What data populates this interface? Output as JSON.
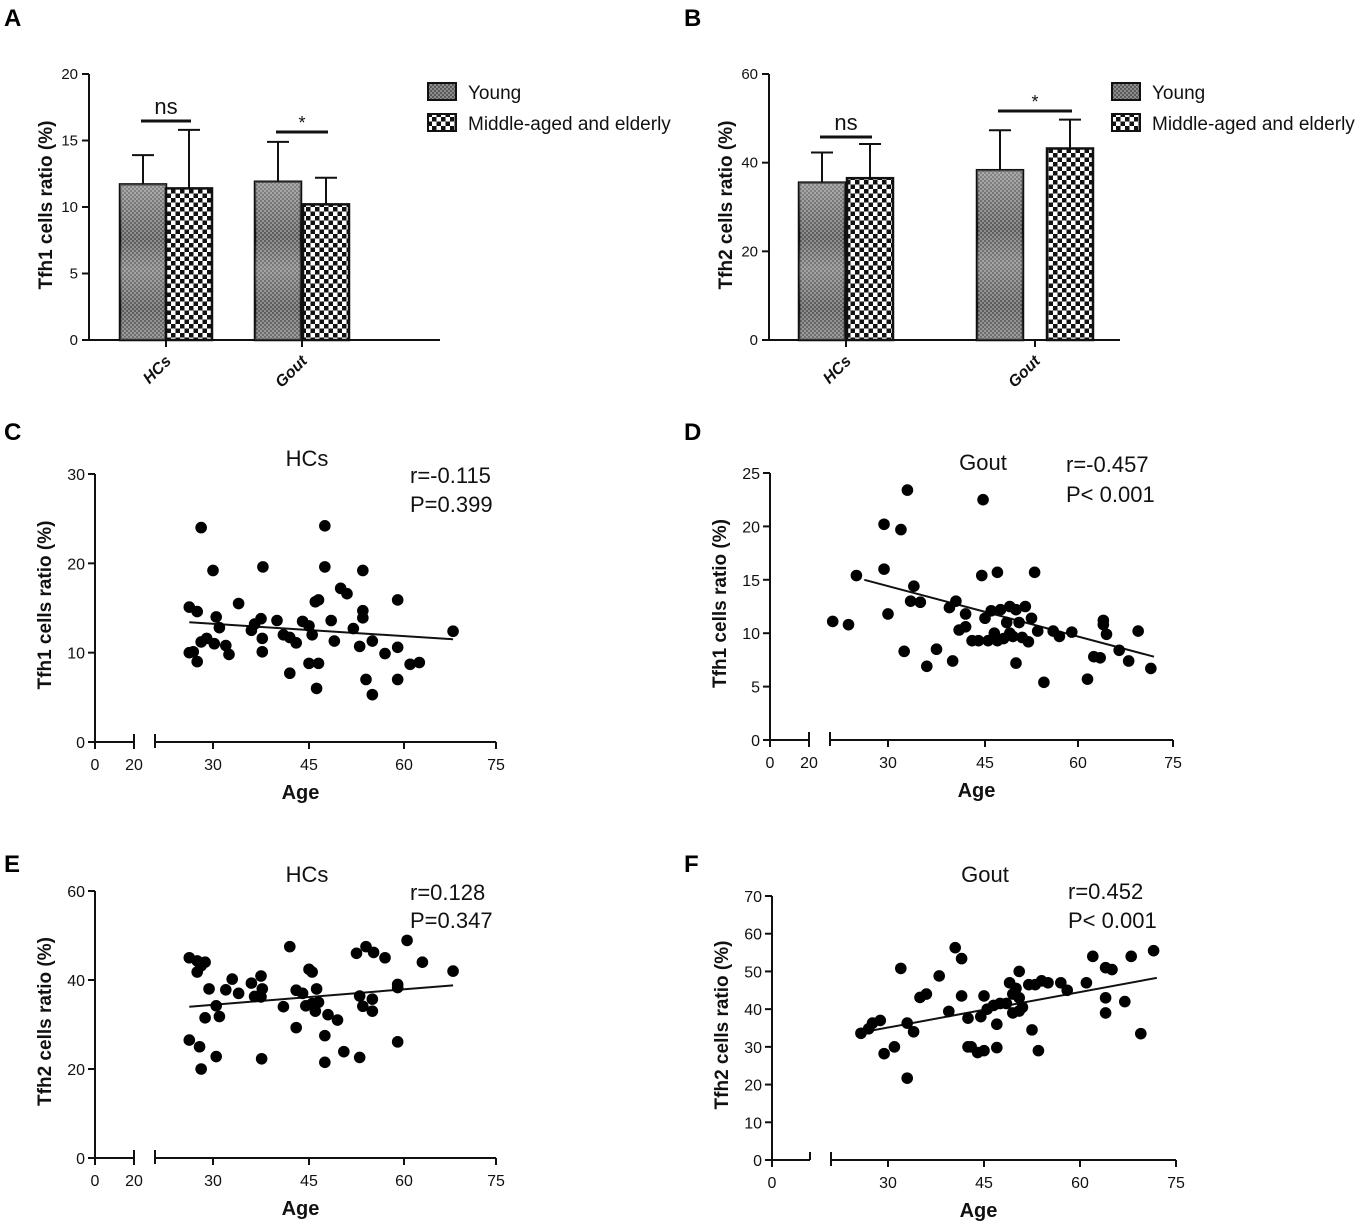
{
  "figure": {
    "panel_labels": [
      "A",
      "B",
      "C",
      "D",
      "E",
      "F"
    ]
  },
  "chart_data": [
    {
      "id": "A",
      "type": "bar",
      "title": "",
      "xlabel": "",
      "ylabel": "Tfh1 cells ratio (%)",
      "categories": [
        "HCs",
        "Gout"
      ],
      "series": [
        {
          "name": "Young",
          "pattern": "fine",
          "values": [
            11.7,
            11.9
          ],
          "errors": [
            2.2,
            3.0
          ]
        },
        {
          "name": "Middle-aged and elderly",
          "pattern": "checker",
          "values": [
            11.4,
            10.2
          ],
          "errors": [
            4.4,
            2.0
          ]
        }
      ],
      "ylim": [
        0,
        20
      ],
      "yticks": [
        "0",
        "5",
        "10",
        "15",
        "20"
      ],
      "significance": [
        "ns",
        "*"
      ],
      "legend": "top-right"
    },
    {
      "id": "B",
      "type": "bar",
      "title": "",
      "xlabel": "",
      "ylabel": "Tfh2 cells ratio (%)",
      "categories": [
        "HCs",
        "Gout"
      ],
      "series": [
        {
          "name": "Young",
          "pattern": "fine",
          "values": [
            35.5,
            38.3
          ],
          "errors": [
            6.8,
            9.0
          ]
        },
        {
          "name": "Middle-aged and elderly",
          "pattern": "checker",
          "values": [
            36.5,
            43.2
          ],
          "errors": [
            7.7,
            6.5
          ]
        }
      ],
      "ylim": [
        0,
        60
      ],
      "yticks": [
        "0",
        "20",
        "40",
        "60"
      ],
      "significance": [
        "ns",
        "*"
      ],
      "legend": "top-right"
    },
    {
      "id": "C",
      "type": "scatter",
      "title": "HCs",
      "xlabel": "Age",
      "ylabel": "Tfh1 cells ratio (%)",
      "xticks": [
        "0",
        "20",
        "30",
        "45",
        "60",
        "75"
      ],
      "yticks": [
        "0",
        "10",
        "20",
        "30"
      ],
      "xlim": [
        0,
        75
      ],
      "ylim": [
        0,
        30
      ],
      "stats": [
        "r=-0.115",
        "P=0.399"
      ],
      "fit": [
        [
          27,
          13.4
        ],
        [
          68,
          11.5
        ]
      ],
      "points": [
        [
          27,
          15.1
        ],
        [
          28.5,
          24.0
        ],
        [
          30,
          19.2
        ],
        [
          28,
          14.6
        ],
        [
          27,
          10.0
        ],
        [
          27.5,
          10.1
        ],
        [
          28,
          9.0
        ],
        [
          28.5,
          11.2
        ],
        [
          29.2,
          11.6
        ],
        [
          30.2,
          11.0
        ],
        [
          30.5,
          14.0
        ],
        [
          31,
          12.8
        ],
        [
          32,
          10.8
        ],
        [
          32.5,
          9.8
        ],
        [
          34,
          15.5
        ],
        [
          36,
          12.5
        ],
        [
          36.5,
          13.2
        ],
        [
          37.5,
          13.8
        ],
        [
          37.8,
          19.6
        ],
        [
          37.7,
          11.6
        ],
        [
          37.7,
          10.1
        ],
        [
          40,
          13.6
        ],
        [
          41,
          12.0
        ],
        [
          42,
          11.7
        ],
        [
          42,
          7.7
        ],
        [
          43,
          11.1
        ],
        [
          44,
          13.5
        ],
        [
          45,
          13.0
        ],
        [
          45,
          8.8
        ],
        [
          45.5,
          12.0
        ],
        [
          46,
          15.7
        ],
        [
          46.5,
          15.9
        ],
        [
          46.2,
          6.0
        ],
        [
          46.5,
          8.8
        ],
        [
          47.5,
          24.2
        ],
        [
          47.5,
          19.6
        ],
        [
          48.5,
          13.6
        ],
        [
          49,
          11.3
        ],
        [
          50,
          17.2
        ],
        [
          51,
          16.6
        ],
        [
          52,
          12.7
        ],
        [
          53,
          10.7
        ],
        [
          53.5,
          19.2
        ],
        [
          53.5,
          14.7
        ],
        [
          53.5,
          13.9
        ],
        [
          54,
          7.0
        ],
        [
          55,
          11.3
        ],
        [
          55,
          5.3
        ],
        [
          57,
          9.9
        ],
        [
          59,
          15.9
        ],
        [
          59,
          10.6
        ],
        [
          59,
          7.0
        ],
        [
          61,
          8.7
        ],
        [
          62.5,
          8.9
        ],
        [
          68,
          12.4
        ]
      ]
    },
    {
      "id": "D",
      "type": "scatter",
      "title": "Gout",
      "xlabel": "Age",
      "ylabel": "Tfh1 cells ratio (%)",
      "xticks": [
        "0",
        "20",
        "30",
        "45",
        "60",
        "75"
      ],
      "yticks": [
        "0",
        "5",
        "10",
        "15",
        "20",
        "25"
      ],
      "xlim": [
        0,
        75
      ],
      "ylim": [
        0,
        25
      ],
      "stats": [
        "r=-0.457",
        "P< 0.001"
      ],
      "fit": [
        [
          27,
          15.0
        ],
        [
          72,
          7.8
        ]
      ],
      "points": [
        [
          23,
          11.1
        ],
        [
          25,
          10.8
        ],
        [
          26,
          15.4
        ],
        [
          29.5,
          20.2
        ],
        [
          29.5,
          16.0
        ],
        [
          30,
          11.8
        ],
        [
          32,
          19.7
        ],
        [
          32.5,
          8.3
        ],
        [
          33,
          23.4
        ],
        [
          33.5,
          13.0
        ],
        [
          34,
          14.4
        ],
        [
          35,
          12.9
        ],
        [
          36,
          6.9
        ],
        [
          37.5,
          8.5
        ],
        [
          39.5,
          12.4
        ],
        [
          40,
          7.4
        ],
        [
          40.5,
          13.0
        ],
        [
          41,
          10.3
        ],
        [
          42,
          11.8
        ],
        [
          42,
          10.6
        ],
        [
          43,
          9.3
        ],
        [
          44,
          9.3
        ],
        [
          44.5,
          15.4
        ],
        [
          44.7,
          22.5
        ],
        [
          45,
          11.4
        ],
        [
          45.5,
          9.3
        ],
        [
          46,
          12.1
        ],
        [
          46.5,
          10.0
        ],
        [
          47,
          15.7
        ],
        [
          47,
          9.3
        ],
        [
          47.5,
          12.2
        ],
        [
          48,
          9.5
        ],
        [
          48.5,
          11.0
        ],
        [
          49,
          12.5
        ],
        [
          49,
          10.0
        ],
        [
          49.5,
          9.7
        ],
        [
          50,
          12.2
        ],
        [
          50,
          7.2
        ],
        [
          50.5,
          11.0
        ],
        [
          51,
          9.6
        ],
        [
          51.5,
          12.5
        ],
        [
          52,
          9.2
        ],
        [
          52.5,
          11.4
        ],
        [
          53,
          15.7
        ],
        [
          53.5,
          10.2
        ],
        [
          54.5,
          5.4
        ],
        [
          56,
          10.2
        ],
        [
          57,
          9.7
        ],
        [
          59,
          10.1
        ],
        [
          61.5,
          5.7
        ],
        [
          62.5,
          7.8
        ],
        [
          63.5,
          7.7
        ],
        [
          64,
          11.2
        ],
        [
          64,
          10.8
        ],
        [
          64.5,
          9.9
        ],
        [
          66.5,
          8.4
        ],
        [
          68,
          7.4
        ],
        [
          69.5,
          10.2
        ],
        [
          71.5,
          6.7
        ]
      ]
    },
    {
      "id": "E",
      "type": "scatter",
      "title": "HCs",
      "xlabel": "Age",
      "ylabel": "Tfh2 cells ratio (%)",
      "xticks": [
        "0",
        "20",
        "30",
        "45",
        "60",
        "75"
      ],
      "yticks": [
        "0",
        "20",
        "40",
        "60"
      ],
      "xlim": [
        0,
        75
      ],
      "ylim": [
        0,
        60
      ],
      "stats": [
        "r=0.128",
        "P=0.347"
      ],
      "fit": [
        [
          27,
          34.0
        ],
        [
          68,
          38.8
        ]
      ],
      "points": [
        [
          27,
          45.0
        ],
        [
          27,
          26.5
        ],
        [
          28,
          44.3
        ],
        [
          28,
          41.8
        ],
        [
          28.5,
          43.2
        ],
        [
          28.3,
          25.0
        ],
        [
          28.5,
          20.0
        ],
        [
          29,
          44.0
        ],
        [
          29,
          31.5
        ],
        [
          29.5,
          38.0
        ],
        [
          30.5,
          22.8
        ],
        [
          30.5,
          34.2
        ],
        [
          31,
          31.8
        ],
        [
          32,
          37.8
        ],
        [
          33,
          40.2
        ],
        [
          34,
          37.0
        ],
        [
          36,
          39.3
        ],
        [
          36.5,
          36.3
        ],
        [
          37.5,
          36.2
        ],
        [
          37.5,
          40.9
        ],
        [
          37.7,
          38.0
        ],
        [
          37.6,
          22.3
        ],
        [
          41,
          34.0
        ],
        [
          42,
          47.5
        ],
        [
          43,
          37.7
        ],
        [
          43,
          29.3
        ],
        [
          44,
          37.0
        ],
        [
          44.5,
          34.2
        ],
        [
          45,
          42.4
        ],
        [
          45.5,
          41.8
        ],
        [
          45.5,
          34.7
        ],
        [
          46,
          33.0
        ],
        [
          46.2,
          38.0
        ],
        [
          46.5,
          35.0
        ],
        [
          47.5,
          27.5
        ],
        [
          47.5,
          21.5
        ],
        [
          48,
          32.2
        ],
        [
          49.5,
          31.0
        ],
        [
          50.5,
          23.9
        ],
        [
          52.5,
          46.0
        ],
        [
          53,
          22.6
        ],
        [
          53,
          36.4
        ],
        [
          53.5,
          34.1
        ],
        [
          54,
          47.5
        ],
        [
          55,
          35.7
        ],
        [
          55,
          33.0
        ],
        [
          55.2,
          46.2
        ],
        [
          57,
          45.0
        ],
        [
          59,
          39.0
        ],
        [
          59,
          38.3
        ],
        [
          59,
          26.1
        ],
        [
          60.5,
          48.9
        ],
        [
          63,
          44.0
        ],
        [
          68,
          42.0
        ]
      ]
    },
    {
      "id": "F",
      "type": "scatter",
      "title": "Gout",
      "xlabel": "Age",
      "ylabel": "Tfh2 cells ratio (%)",
      "xticks": [
        "0",
        "30",
        "45",
        "60",
        "75"
      ],
      "yticks": [
        "0",
        "10",
        "20",
        "30",
        "40",
        "50",
        "60",
        "70"
      ],
      "xlim": [
        0,
        75
      ],
      "ylim": [
        0,
        70
      ],
      "stats": [
        "r=0.452",
        "P< 0.001"
      ],
      "fit": [
        [
          23,
          33.8
        ],
        [
          72,
          48.3
        ]
      ],
      "points": [
        [
          23,
          33.6
        ],
        [
          25,
          34.8
        ],
        [
          26,
          36.3
        ],
        [
          28,
          37.0
        ],
        [
          29,
          28.2
        ],
        [
          31,
          30.0
        ],
        [
          32,
          50.8
        ],
        [
          33,
          36.3
        ],
        [
          33,
          21.7
        ],
        [
          34,
          34.0
        ],
        [
          35,
          43.1
        ],
        [
          36,
          44.0
        ],
        [
          38,
          48.8
        ],
        [
          39.5,
          39.4
        ],
        [
          40.5,
          56.3
        ],
        [
          41.5,
          53.4
        ],
        [
          41.5,
          43.5
        ],
        [
          42.5,
          37.6
        ],
        [
          42.5,
          30.0
        ],
        [
          43,
          30.0
        ],
        [
          44,
          28.5
        ],
        [
          44.5,
          38.0
        ],
        [
          45,
          43.5
        ],
        [
          45,
          29.0
        ],
        [
          45.5,
          40.0
        ],
        [
          46.5,
          41.0
        ],
        [
          47,
          36.0
        ],
        [
          47,
          29.8
        ],
        [
          47.5,
          41.5
        ],
        [
          48.5,
          41.5
        ],
        [
          49,
          47.0
        ],
        [
          49.5,
          44.0
        ],
        [
          49.5,
          39.0
        ],
        [
          50,
          45.5
        ],
        [
          50.5,
          50.0
        ],
        [
          50.5,
          43.0
        ],
        [
          50.5,
          39.5
        ],
        [
          51,
          40.5
        ],
        [
          52,
          46.5
        ],
        [
          52.5,
          34.5
        ],
        [
          53,
          46.5
        ],
        [
          53.5,
          29.0
        ],
        [
          54,
          47.5
        ],
        [
          55,
          47.0
        ],
        [
          57,
          47.0
        ],
        [
          58,
          45.0
        ],
        [
          61,
          47.0
        ],
        [
          62,
          54.0
        ],
        [
          64,
          51.0
        ],
        [
          64,
          43.0
        ],
        [
          64,
          39.0
        ],
        [
          65,
          50.5
        ],
        [
          67,
          42.0
        ],
        [
          68,
          54.0
        ],
        [
          69.5,
          33.5
        ],
        [
          71.5,
          55.5
        ]
      ]
    }
  ]
}
